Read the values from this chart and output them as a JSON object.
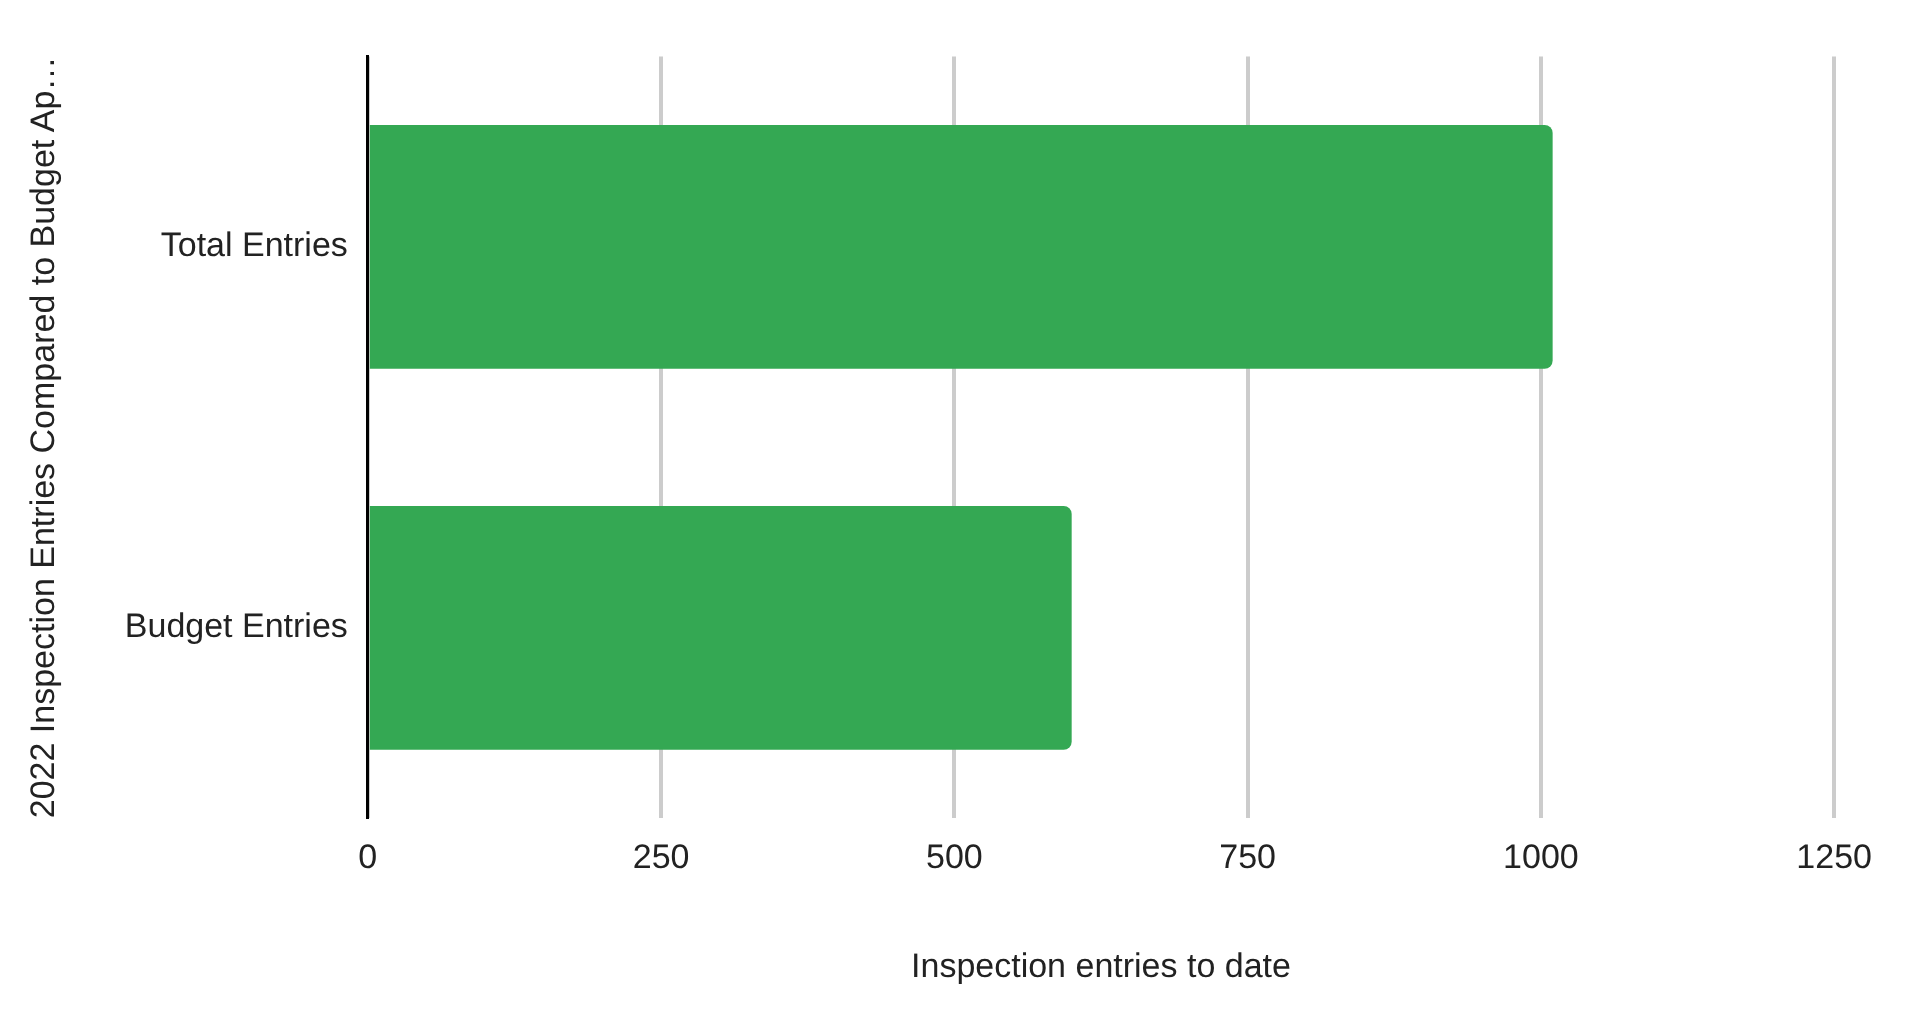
{
  "chart_data": {
    "type": "bar",
    "orientation": "horizontal",
    "ylabel": "2022 Inspection Entries Compared to Budget Ap…",
    "xlabel": "Inspection entries to date",
    "categories": [
      "Total Entries",
      "Budget Entries"
    ],
    "values": [
      1010,
      600
    ],
    "color": "#34a853",
    "xlim": [
      0,
      1250
    ],
    "xticks": [
      0,
      250,
      500,
      750,
      1000,
      1250
    ],
    "grid": "x",
    "legend": false
  }
}
